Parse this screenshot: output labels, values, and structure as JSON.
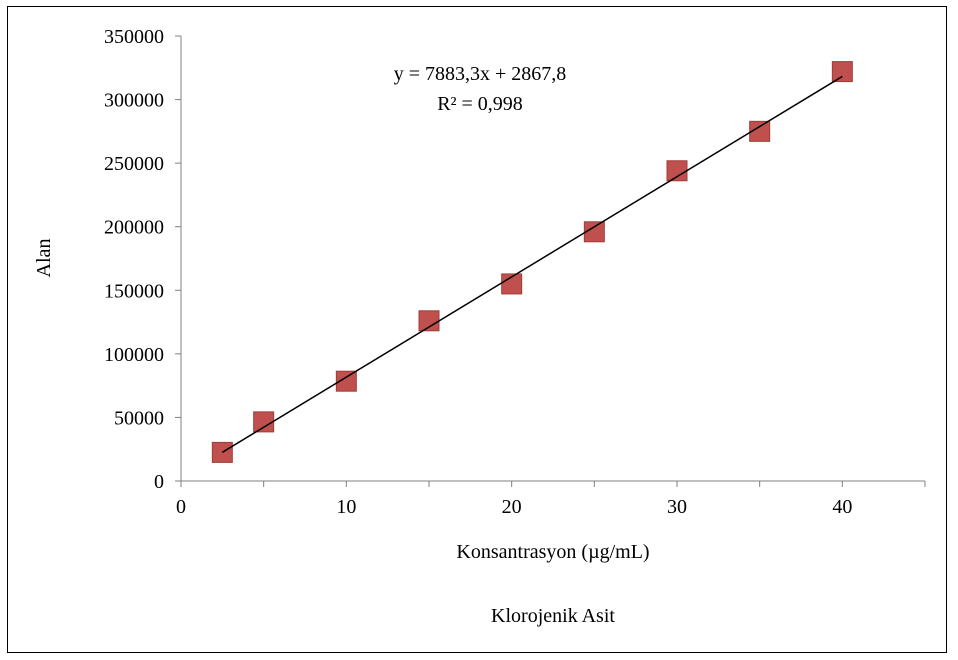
{
  "chart_data": {
    "type": "scatter",
    "caption": "Klorojenik Asit",
    "xlabel": "Konsantrasyon (µg/mL)",
    "ylabel": "Alan",
    "xlim": [
      0,
      45
    ],
    "ylim": [
      0,
      350000
    ],
    "x_ticks": [
      "0",
      "10",
      "20",
      "30",
      "40"
    ],
    "x_tick_values": [
      0,
      10,
      20,
      30,
      40
    ],
    "y_ticks": [
      "0",
      "50000",
      "100000",
      "150000",
      "200000",
      "250000",
      "300000",
      "350000"
    ],
    "y_tick_values": [
      0,
      50000,
      100000,
      150000,
      200000,
      250000,
      300000,
      350000
    ],
    "grid": false,
    "legend": "none",
    "series": [
      {
        "x": [
          2.5,
          5,
          10,
          15,
          20,
          25,
          30,
          35,
          40
        ],
        "y": [
          22500,
          46500,
          78500,
          126000,
          155000,
          196000,
          244000,
          275000,
          322000
        ],
        "marker": "square",
        "color": "#c0504d"
      }
    ],
    "trendline": {
      "type": "linear",
      "slope": 7883.3,
      "intercept": 2867.8,
      "x_range": [
        2.5,
        40
      ],
      "color": "#000000",
      "equation": "y = 7883,3x + 2867,8",
      "r_squared": "R² = 0,998"
    }
  }
}
